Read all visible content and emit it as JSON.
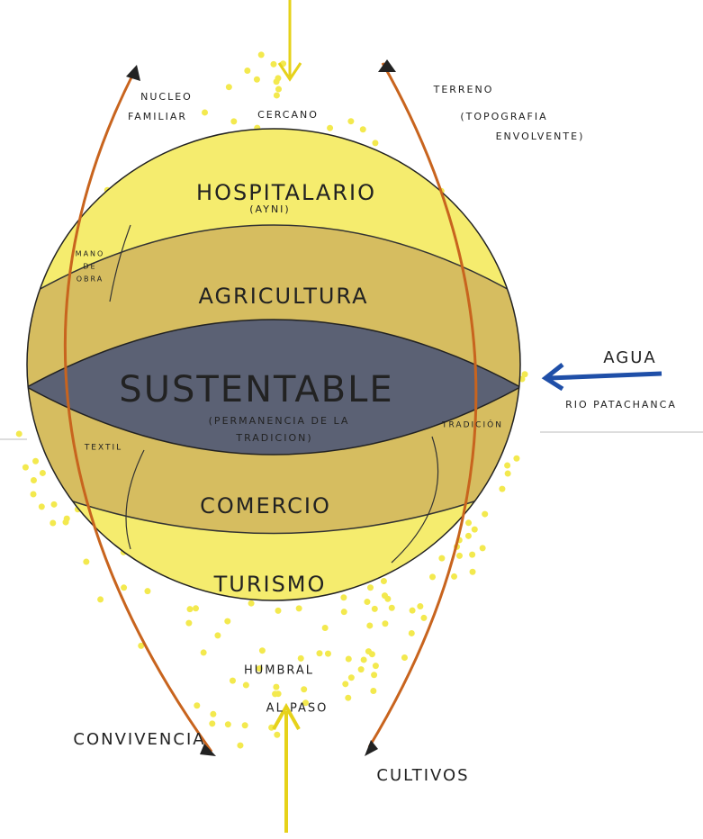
{
  "labels": {
    "nucleo": "NUCLEO",
    "familiar": "FAMILIAR",
    "cercano": "CERCANO",
    "terreno": "TERRENO",
    "topografia": "(TOPOGRAFIA",
    "envolvente": "ENVOLVENTE)",
    "hospitalario": "HOSPITALARIO",
    "ayni": "(AYNI)",
    "mano": "MANO",
    "de": "DE",
    "obra": "OBRA",
    "agricultura": "AGRICULTURA",
    "sustentable": "SUSTENTABLE",
    "permanencia": "(PERMANENCIA DE LA",
    "tradicion": "TRADICION)",
    "agua": "AGUA",
    "rio": "RIO PATACHANCA",
    "textil": "TEXTIL",
    "tradicion_arrow": "TRADICIÓN",
    "comercio": "COMERCIO",
    "turismo": "TURISMO",
    "humbral": "HUMBRAL",
    "al_paso": "AL PASO",
    "convivencia": "CONVIVENCIA",
    "cultivos": "CULTIVOS"
  }
}
